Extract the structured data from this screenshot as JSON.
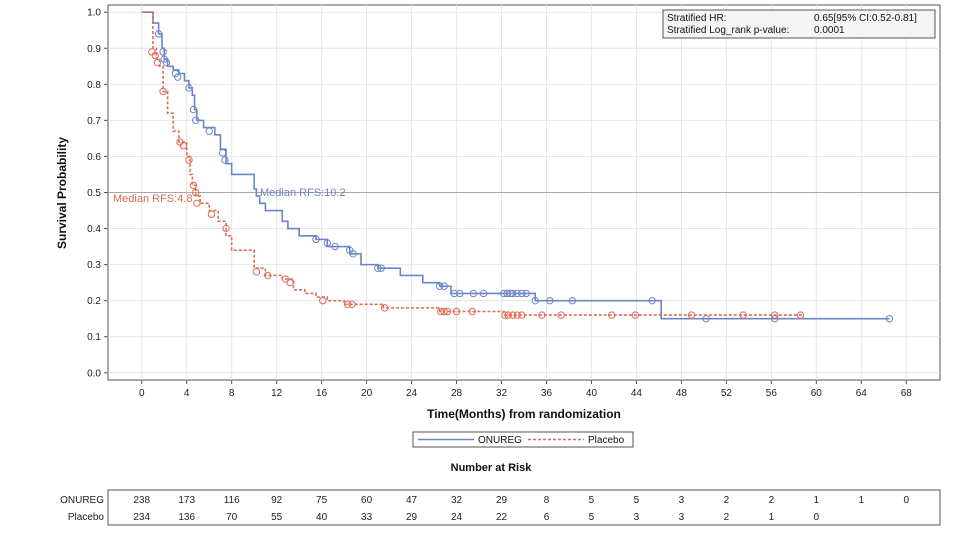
{
  "colors": {
    "onureg": "#6a85c8",
    "placebo": "#e06a55",
    "frame": "#555555",
    "grid": "#e6e6e6",
    "refline": "#a8a8a8"
  },
  "chart_data": {
    "type": "line",
    "subtype": "kaplan-meier",
    "xlabel": "Time(Months) from randomization",
    "ylabel": "Survival Probability",
    "xlim": [
      -3,
      71
    ],
    "ylim": [
      -0.02,
      1.02
    ],
    "x_ticks": [
      0,
      4,
      8,
      12,
      16,
      20,
      24,
      28,
      32,
      36,
      40,
      44,
      48,
      52,
      56,
      60,
      64,
      68
    ],
    "y_ticks": [
      0.0,
      0.1,
      0.2,
      0.3,
      0.4,
      0.5,
      0.6,
      0.7,
      0.8,
      0.9,
      1.0
    ],
    "grid": true,
    "reference_line_y": 0.5,
    "legend_position": "bottom-center",
    "stats_box": {
      "line1_label": "Stratified HR:",
      "line1_value": "0.65[95% CI:0.52-0.81]",
      "line2_label": "Stratified Log_rank p-value:",
      "line2_value": "0.0001"
    },
    "annotations": {
      "onureg_median": "Median RFS:10.2",
      "placebo_median": "Median RFS:4.8"
    },
    "series": [
      {
        "name": "ONUREG",
        "line_style": "solid",
        "steps": [
          [
            0,
            1.0
          ],
          [
            1,
            0.97
          ],
          [
            1.5,
            0.94
          ],
          [
            1.8,
            0.9
          ],
          [
            2.0,
            0.87
          ],
          [
            2.3,
            0.85
          ],
          [
            2.8,
            0.84
          ],
          [
            3.3,
            0.83
          ],
          [
            3.8,
            0.81
          ],
          [
            4.2,
            0.79
          ],
          [
            4.5,
            0.77
          ],
          [
            4.7,
            0.73
          ],
          [
            4.9,
            0.7
          ],
          [
            5.5,
            0.68
          ],
          [
            6.5,
            0.66
          ],
          [
            7.0,
            0.62
          ],
          [
            7.5,
            0.58
          ],
          [
            8.0,
            0.55
          ],
          [
            10.0,
            0.51
          ],
          [
            10.2,
            0.49
          ],
          [
            10.5,
            0.47
          ],
          [
            11.0,
            0.45
          ],
          [
            12.5,
            0.42
          ],
          [
            13.0,
            0.4
          ],
          [
            14.0,
            0.38
          ],
          [
            15.5,
            0.37
          ],
          [
            16.5,
            0.35
          ],
          [
            17.5,
            0.35
          ],
          [
            18.5,
            0.33
          ],
          [
            19.5,
            0.3
          ],
          [
            21,
            0.29
          ],
          [
            23.0,
            0.27
          ],
          [
            25.0,
            0.25
          ],
          [
            26.5,
            0.24
          ],
          [
            27.5,
            0.22
          ],
          [
            28,
            0.22
          ],
          [
            30,
            0.22
          ],
          [
            32,
            0.22
          ],
          [
            34,
            0.22
          ],
          [
            35,
            0.2
          ],
          [
            38,
            0.2
          ],
          [
            42,
            0.2
          ],
          [
            44,
            0.2
          ],
          [
            45.5,
            0.2
          ],
          [
            46.2,
            0.15
          ],
          [
            50,
            0.15
          ],
          [
            56,
            0.15
          ],
          [
            60,
            0.15
          ],
          [
            66.5,
            0.15
          ]
        ],
        "censored": [
          [
            1.5,
            0.94
          ],
          [
            1.9,
            0.89
          ],
          [
            2.0,
            0.87
          ],
          [
            2.2,
            0.86
          ],
          [
            3.0,
            0.83
          ],
          [
            3.2,
            0.82
          ],
          [
            4.2,
            0.79
          ],
          [
            4.6,
            0.73
          ],
          [
            4.8,
            0.7
          ],
          [
            6.0,
            0.67
          ],
          [
            7.2,
            0.61
          ],
          [
            7.4,
            0.59
          ],
          [
            15.5,
            0.37
          ],
          [
            16.5,
            0.36
          ],
          [
            17.2,
            0.35
          ],
          [
            18.5,
            0.34
          ],
          [
            18.8,
            0.33
          ],
          [
            21.0,
            0.29
          ],
          [
            21.3,
            0.29
          ],
          [
            26.5,
            0.24
          ],
          [
            26.9,
            0.24
          ],
          [
            27.8,
            0.22
          ],
          [
            28.3,
            0.22
          ],
          [
            29.5,
            0.22
          ],
          [
            30.4,
            0.22
          ],
          [
            32.2,
            0.22
          ],
          [
            32.5,
            0.22
          ],
          [
            32.8,
            0.22
          ],
          [
            33.0,
            0.22
          ],
          [
            33.4,
            0.22
          ],
          [
            33.8,
            0.22
          ],
          [
            34.2,
            0.22
          ],
          [
            35.0,
            0.2
          ],
          [
            36.3,
            0.2
          ],
          [
            38.3,
            0.2
          ],
          [
            45.4,
            0.2
          ],
          [
            50.2,
            0.15
          ],
          [
            56.3,
            0.15
          ],
          [
            66.5,
            0.15
          ]
        ]
      },
      {
        "name": "Placebo",
        "line_style": "dashed",
        "steps": [
          [
            0,
            1.0
          ],
          [
            1.0,
            0.9
          ],
          [
            1.3,
            0.87
          ],
          [
            1.6,
            0.85
          ],
          [
            1.9,
            0.78
          ],
          [
            2.3,
            0.72
          ],
          [
            2.8,
            0.67
          ],
          [
            3.3,
            0.64
          ],
          [
            4.0,
            0.6
          ],
          [
            4.3,
            0.55
          ],
          [
            4.5,
            0.52
          ],
          [
            4.8,
            0.49
          ],
          [
            5.2,
            0.47
          ],
          [
            6.0,
            0.45
          ],
          [
            6.8,
            0.42
          ],
          [
            7.5,
            0.38
          ],
          [
            8.0,
            0.34
          ],
          [
            10.0,
            0.29
          ],
          [
            11.0,
            0.27
          ],
          [
            12.5,
            0.26
          ],
          [
            13.5,
            0.23
          ],
          [
            14.5,
            0.22
          ],
          [
            15.5,
            0.21
          ],
          [
            16.5,
            0.2
          ],
          [
            18.0,
            0.19
          ],
          [
            20.0,
            0.19
          ],
          [
            21.5,
            0.18
          ],
          [
            24.5,
            0.18
          ],
          [
            26.5,
            0.17
          ],
          [
            30,
            0.17
          ],
          [
            32.2,
            0.16
          ],
          [
            32.8,
            0.16
          ],
          [
            36,
            0.16
          ],
          [
            40,
            0.16
          ],
          [
            44,
            0.16
          ],
          [
            48,
            0.16
          ],
          [
            52,
            0.16
          ],
          [
            58.8,
            0.16
          ]
        ],
        "censored": [
          [
            0.9,
            0.89
          ],
          [
            1.2,
            0.88
          ],
          [
            1.4,
            0.86
          ],
          [
            1.9,
            0.78
          ],
          [
            3.4,
            0.64
          ],
          [
            3.7,
            0.63
          ],
          [
            4.2,
            0.59
          ],
          [
            4.6,
            0.52
          ],
          [
            4.8,
            0.5
          ],
          [
            4.9,
            0.47
          ],
          [
            6.2,
            0.44
          ],
          [
            7.5,
            0.4
          ],
          [
            10.2,
            0.28
          ],
          [
            11.2,
            0.27
          ],
          [
            12.8,
            0.26
          ],
          [
            13.2,
            0.25
          ],
          [
            16.1,
            0.2
          ],
          [
            18.3,
            0.19
          ],
          [
            18.7,
            0.19
          ],
          [
            21.6,
            0.18
          ],
          [
            26.6,
            0.17
          ],
          [
            26.9,
            0.17
          ],
          [
            27.2,
            0.17
          ],
          [
            28.0,
            0.17
          ],
          [
            29.4,
            0.17
          ],
          [
            32.3,
            0.16
          ],
          [
            32.6,
            0.16
          ],
          [
            33.0,
            0.16
          ],
          [
            33.4,
            0.16
          ],
          [
            33.8,
            0.16
          ],
          [
            35.6,
            0.16
          ],
          [
            37.3,
            0.16
          ],
          [
            41.8,
            0.16
          ],
          [
            43.9,
            0.16
          ],
          [
            48.9,
            0.16
          ],
          [
            53.5,
            0.16
          ],
          [
            56.3,
            0.16
          ],
          [
            58.6,
            0.16
          ]
        ]
      }
    ]
  },
  "risk_table": {
    "title": "Number at Risk",
    "times": [
      0,
      4,
      8,
      12,
      16,
      20,
      24,
      28,
      32,
      36,
      40,
      44,
      48,
      52,
      56,
      60,
      64,
      68
    ],
    "rows": [
      {
        "name": "ONUREG",
        "values": [
          "238",
          "173",
          "116",
          "92",
          "75",
          "60",
          "47",
          "32",
          "29",
          "8",
          "5",
          "5",
          "3",
          "2",
          "2",
          "1",
          "1",
          "0"
        ]
      },
      {
        "name": "Placebo",
        "values": [
          "234",
          "136",
          "70",
          "55",
          "40",
          "33",
          "29",
          "24",
          "22",
          "6",
          "5",
          "3",
          "3",
          "2",
          "1",
          "0",
          "",
          ""
        ]
      }
    ]
  }
}
